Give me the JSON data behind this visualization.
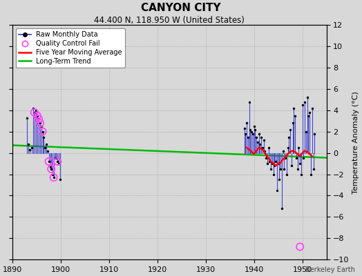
{
  "title": "CANYON CITY",
  "subtitle": "44.400 N, 118.950 W (United States)",
  "ylabel": "Temperature Anomaly (°C)",
  "watermark": "Berkeley Earth",
  "xlim": [
    1890,
    1955
  ],
  "ylim": [
    -10,
    12
  ],
  "yticks": [
    -10,
    -8,
    -6,
    -4,
    -2,
    0,
    2,
    4,
    6,
    8,
    10,
    12
  ],
  "xticks": [
    1890,
    1900,
    1910,
    1920,
    1930,
    1940,
    1950
  ],
  "bg_color": "#d8d8d8",
  "plot_bg": "#d8d8d8",
  "raw_color": "#4444cc",
  "dot_color": "#000000",
  "qc_color": "#ff44ff",
  "moving_avg_color": "#ff0000",
  "trend_color": "#00bb00",
  "early_years": [
    1893.0,
    1893.3,
    1893.6,
    1893.9,
    1894.2,
    1894.5,
    1894.8,
    1895.1,
    1895.4,
    1895.7,
    1896.0,
    1896.2,
    1896.4,
    1896.7,
    1897.0,
    1897.2,
    1897.5,
    1897.8,
    1898.0,
    1898.2,
    1898.5,
    1898.8,
    1899.0,
    1899.3,
    1899.6,
    1899.9
  ],
  "early_values": [
    3.3,
    0.8,
    0.3,
    0.5,
    4.2,
    3.8,
    4.0,
    3.5,
    3.2,
    2.8,
    2.5,
    2.0,
    1.5,
    0.5,
    0.8,
    0.2,
    -0.8,
    -1.3,
    -1.5,
    -2.0,
    -2.3,
    -0.5,
    -0.5,
    -0.8,
    -1.0,
    -2.5
  ],
  "early_qc_years": [
    1894.5,
    1895.1,
    1895.4,
    1895.7,
    1896.2,
    1897.5,
    1898.0,
    1898.5,
    1899.3
  ],
  "early_qc_values": [
    3.8,
    3.5,
    3.2,
    2.8,
    2.0,
    -0.8,
    -1.5,
    -2.3,
    -0.8
  ],
  "late_years": [
    1938.0,
    1938.2,
    1938.5,
    1938.8,
    1939.0,
    1939.2,
    1939.5,
    1939.8,
    1940.0,
    1940.2,
    1940.5,
    1940.8,
    1941.0,
    1941.2,
    1941.5,
    1941.8,
    1942.0,
    1942.2,
    1942.5,
    1942.8,
    1943.0,
    1943.2,
    1943.5,
    1943.8,
    1944.0,
    1944.2,
    1944.5,
    1944.8,
    1945.0,
    1945.2,
    1945.5,
    1945.8,
    1946.0,
    1946.2,
    1946.5,
    1946.8,
    1947.0,
    1947.2,
    1947.5,
    1947.8,
    1948.0,
    1948.2,
    1948.5,
    1948.8,
    1949.0,
    1949.2,
    1949.5,
    1949.8,
    1950.0,
    1950.2,
    1950.5,
    1950.8,
    1951.0,
    1951.2,
    1951.5,
    1951.8,
    1952.0,
    1952.3,
    1952.5
  ],
  "late_values": [
    2.3,
    1.8,
    2.8,
    1.5,
    4.8,
    2.2,
    2.0,
    1.8,
    2.5,
    2.2,
    1.5,
    1.0,
    1.8,
    0.8,
    1.5,
    0.5,
    1.2,
    0.2,
    -0.5,
    -1.0,
    0.5,
    -0.8,
    -1.5,
    -1.0,
    -2.0,
    -1.2,
    -0.8,
    -3.5,
    -1.0,
    -2.5,
    -1.5,
    -5.2,
    0.2,
    -1.5,
    -0.5,
    -2.0,
    0.5,
    1.5,
    2.2,
    -1.2,
    2.8,
    4.2,
    3.5,
    -0.5,
    -1.5,
    0.5,
    -1.0,
    -2.0,
    4.5,
    -0.5,
    4.8,
    2.0,
    5.2,
    3.5,
    3.8,
    -2.0,
    4.2,
    -1.5,
    1.8
  ],
  "late_qc_years": [
    1949.5
  ],
  "late_qc_values": [
    -8.8
  ],
  "moving_avg_years": [
    1938.5,
    1939.0,
    1939.5,
    1940.0,
    1940.5,
    1941.0,
    1941.5,
    1942.0,
    1942.5,
    1943.0,
    1943.5,
    1944.0,
    1944.5,
    1945.0,
    1945.5,
    1946.0,
    1946.5,
    1947.0,
    1947.5,
    1948.0,
    1948.5,
    1949.0,
    1949.5,
    1950.0,
    1950.5,
    1951.0,
    1951.5,
    1952.0
  ],
  "moving_avg_values": [
    0.5,
    0.3,
    0.1,
    -0.1,
    0.2,
    0.5,
    0.4,
    0.2,
    -0.2,
    -0.5,
    -0.8,
    -1.0,
    -1.2,
    -1.0,
    -0.9,
    -0.6,
    -0.4,
    -0.1,
    0.1,
    0.2,
    0.1,
    -0.1,
    -0.3,
    0.0,
    0.2,
    0.1,
    -0.1,
    -0.3
  ],
  "trend_x": [
    1890,
    1955
  ],
  "trend_y": [
    0.72,
    -0.45
  ]
}
